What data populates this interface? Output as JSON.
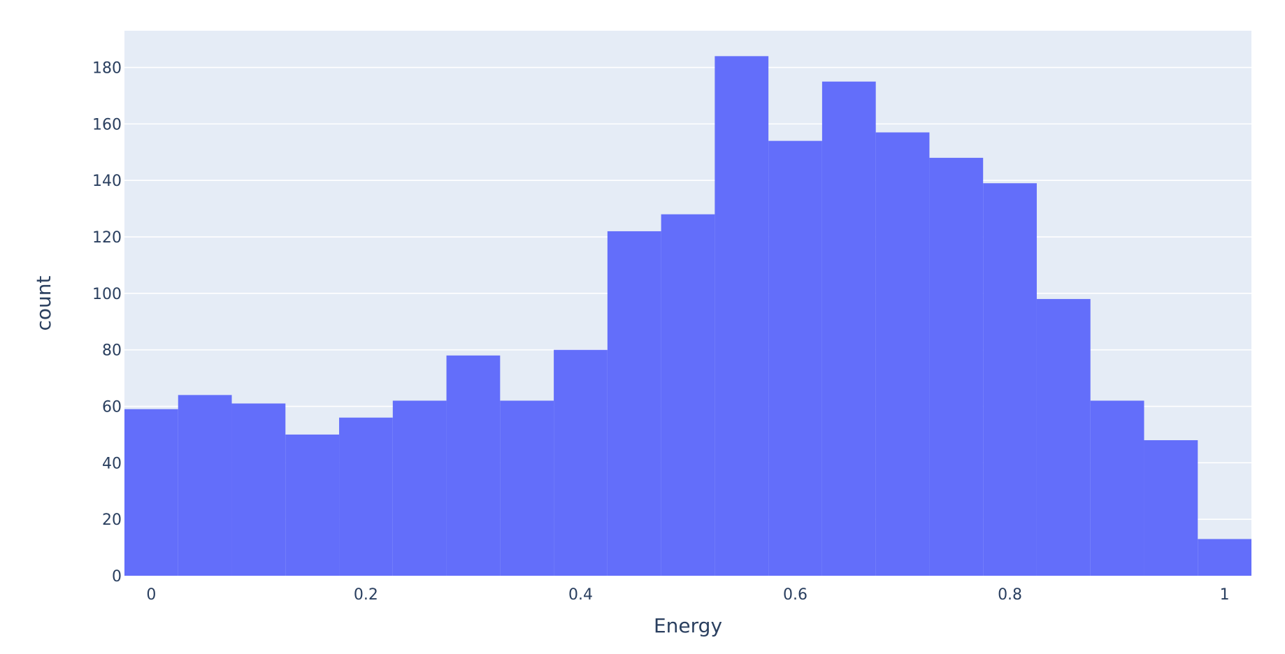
{
  "colors": {
    "bar_fill": "#636efa",
    "plot_background": "#e5ecf6",
    "paper_background": "#ffffff",
    "gridline": "#ffffff",
    "text": "#2a3f5f"
  },
  "chart_data": {
    "type": "bar",
    "chart_kind": "histogram",
    "xlabel": "Energy",
    "ylabel": "count",
    "xlim": [
      -0.025,
      1.025
    ],
    "ylim": [
      0,
      193
    ],
    "bin_width": 0.05,
    "bin_edges": [
      -0.025,
      0.025,
      0.075,
      0.125,
      0.175,
      0.225,
      0.275,
      0.325,
      0.375,
      0.425,
      0.475,
      0.525,
      0.575,
      0.625,
      0.675,
      0.725,
      0.775,
      0.825,
      0.875,
      0.925,
      0.975,
      1.025
    ],
    "categories": [
      "0",
      "0.05",
      "0.1",
      "0.15",
      "0.2",
      "0.25",
      "0.3",
      "0.35",
      "0.4",
      "0.45",
      "0.5",
      "0.55",
      "0.6",
      "0.65",
      "0.7",
      "0.75",
      "0.8",
      "0.85",
      "0.9",
      "0.95",
      "1"
    ],
    "values": [
      59,
      64,
      61,
      50,
      56,
      62,
      78,
      62,
      80,
      122,
      128,
      184,
      154,
      175,
      157,
      148,
      139,
      98,
      62,
      48,
      13
    ],
    "x_ticks": [
      {
        "value": 0,
        "label": "0"
      },
      {
        "value": 0.2,
        "label": "0.2"
      },
      {
        "value": 0.4,
        "label": "0.4"
      },
      {
        "value": 0.6,
        "label": "0.6"
      },
      {
        "value": 0.8,
        "label": "0.8"
      },
      {
        "value": 1,
        "label": "1"
      }
    ],
    "y_ticks": [
      {
        "value": 0,
        "label": "0"
      },
      {
        "value": 20,
        "label": "20"
      },
      {
        "value": 40,
        "label": "40"
      },
      {
        "value": 60,
        "label": "60"
      },
      {
        "value": 80,
        "label": "80"
      },
      {
        "value": 100,
        "label": "100"
      },
      {
        "value": 120,
        "label": "120"
      },
      {
        "value": 140,
        "label": "140"
      },
      {
        "value": 160,
        "label": "160"
      },
      {
        "value": 180,
        "label": "180"
      }
    ],
    "grid": true,
    "legend": "none"
  }
}
